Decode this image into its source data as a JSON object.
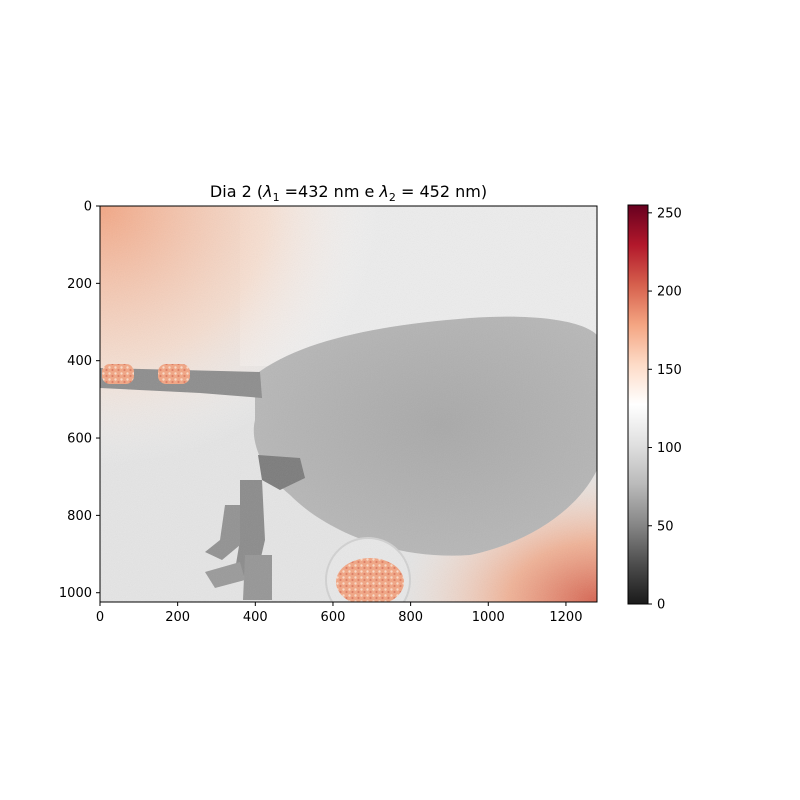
{
  "chart_data": {
    "type": "heatmap",
    "title_parts": [
      "Dia 2 (",
      "λ",
      "1",
      " =432 nm e ",
      "λ",
      "2",
      " = 452 nm)"
    ],
    "xlabel": "",
    "ylabel": "",
    "xlim": [
      0,
      1280
    ],
    "ylim": [
      1024,
      0
    ],
    "xticks": [
      0,
      200,
      400,
      600,
      800,
      1000,
      1200
    ],
    "yticks": [
      0,
      200,
      400,
      600,
      800,
      1000
    ],
    "colorbar": {
      "range": [
        0,
        255
      ],
      "ticks": [
        0,
        50,
        100,
        150,
        200,
        250
      ],
      "colormap": "RdGy_r",
      "colors": [
        "#1a1a1a",
        "#4d4d4d",
        "#878787",
        "#bababa",
        "#e0e0e0",
        "#ffffff",
        "#fddbc7",
        "#f4a582",
        "#d6604d",
        "#b2182b",
        "#67001f"
      ]
    },
    "image_content": "grayscale absorbance image of a small aquatic animal (body, tail and legs) with warm orange-red regions in the top-left and bottom-right corners and red speckled patches at the tail and near the bottom center"
  }
}
